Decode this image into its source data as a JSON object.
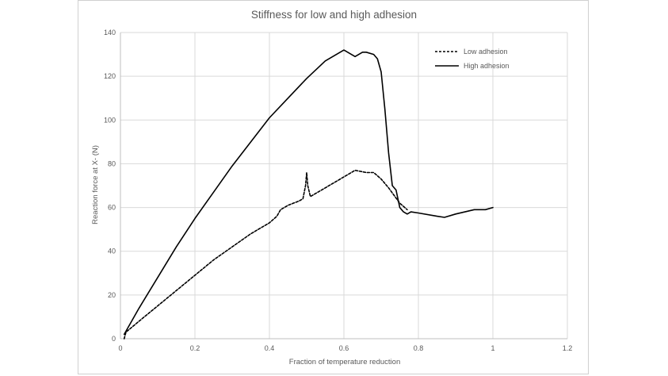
{
  "chart_data": {
    "type": "line",
    "title": "Stiffness for low and high adhesion",
    "xlabel": "Fraction of temperature reduction",
    "ylabel": "Reaction force at X- (N)",
    "xlim": [
      0,
      1.2
    ],
    "ylim": [
      0,
      140
    ],
    "x_ticks": [
      "0",
      "0.2",
      "0.4",
      "0.6",
      "0.8",
      "1",
      "1.2"
    ],
    "y_ticks": [
      "0",
      "20",
      "40",
      "60",
      "80",
      "100",
      "120",
      "140"
    ],
    "grid": true,
    "legend_placement": "top-right",
    "series": [
      {
        "name": "Low adhesion",
        "style": "dashed",
        "color": "#000000",
        "x": [
          0.01,
          0.015,
          0.05,
          0.1,
          0.15,
          0.2,
          0.25,
          0.3,
          0.35,
          0.4,
          0.42,
          0.43,
          0.45,
          0.48,
          0.49,
          0.497,
          0.5,
          0.503,
          0.51,
          0.52,
          0.55,
          0.6,
          0.63,
          0.66,
          0.68,
          0.7,
          0.72,
          0.75,
          0.77
        ],
        "y": [
          0,
          3,
          8,
          15,
          22,
          29,
          36,
          42,
          48,
          53,
          56,
          59,
          61,
          63,
          64,
          70,
          76,
          70,
          65,
          66,
          69,
          74,
          77,
          76,
          76,
          73,
          69,
          62,
          59
        ]
      },
      {
        "name": "High adhesion",
        "style": "solid",
        "color": "#000000",
        "x": [
          0.01,
          0.05,
          0.1,
          0.15,
          0.2,
          0.25,
          0.3,
          0.35,
          0.4,
          0.45,
          0.5,
          0.55,
          0.6,
          0.63,
          0.65,
          0.66,
          0.68,
          0.69,
          0.7,
          0.71,
          0.72,
          0.73,
          0.74,
          0.75,
          0.755,
          0.76,
          0.77,
          0.78,
          0.8,
          0.85,
          0.87,
          0.9,
          0.95,
          0.98,
          1.0
        ],
        "y": [
          2,
          14,
          28,
          42,
          55,
          67,
          79,
          90,
          101,
          110,
          119,
          127,
          132,
          129,
          131,
          131,
          130,
          128,
          122,
          105,
          85,
          70,
          68,
          60,
          59,
          58,
          57,
          58,
          57.5,
          56,
          55.5,
          57,
          59,
          59,
          60
        ]
      }
    ]
  }
}
